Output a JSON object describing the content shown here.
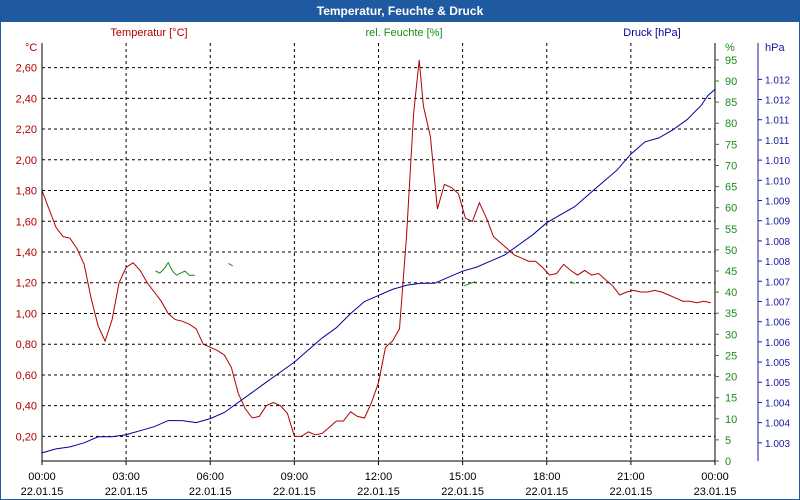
{
  "window": {
    "title": "Temperatur, Feuchte & Druck"
  },
  "colors": {
    "temperature": "#b00000",
    "humidity": "#1a8c1a",
    "pressure": "#000099",
    "pressure_axis": "#1a1aa0",
    "grid": "#000000",
    "titlebar": "#1f5aa0"
  },
  "chart_data": {
    "type": "line",
    "title": "Temperatur, Feuchte & Druck",
    "grid": true,
    "x_axis": {
      "range_hours": [
        0,
        24
      ],
      "ticks": [
        {
          "h": 0,
          "time": "00:00",
          "date": "22.01.15"
        },
        {
          "h": 3,
          "time": "03:00",
          "date": "22.01.15"
        },
        {
          "h": 6,
          "time": "06:00",
          "date": "22.01.15"
        },
        {
          "h": 9,
          "time": "09:00",
          "date": "22.01.15"
        },
        {
          "h": 12,
          "time": "12:00",
          "date": "22.01.15"
        },
        {
          "h": 15,
          "time": "15:00",
          "date": "22.01.15"
        },
        {
          "h": 18,
          "time": "18:00",
          "date": "22.01.15"
        },
        {
          "h": 21,
          "time": "21:00",
          "date": "22.01.15"
        },
        {
          "h": 24,
          "time": "00:00",
          "date": "23.01.15"
        }
      ]
    },
    "axes": {
      "temperature": {
        "label": "Temperatur [°C]",
        "unit": "°C",
        "side": "left",
        "range": [
          0.04,
          2.76
        ],
        "ticks": [
          {
            "v": 0.2,
            "label": "0,20"
          },
          {
            "v": 0.4,
            "label": "0,40"
          },
          {
            "v": 0.6,
            "label": "0,60"
          },
          {
            "v": 0.8,
            "label": "0,80"
          },
          {
            "v": 1.0,
            "label": "1,00"
          },
          {
            "v": 1.2,
            "label": "1,20"
          },
          {
            "v": 1.4,
            "label": "1,40"
          },
          {
            "v": 1.6,
            "label": "1,60"
          },
          {
            "v": 1.8,
            "label": "1,80"
          },
          {
            "v": 2.0,
            "label": "2,00"
          },
          {
            "v": 2.2,
            "label": "2,20"
          },
          {
            "v": 2.4,
            "label": "2,40"
          },
          {
            "v": 2.6,
            "label": "2,60"
          }
        ]
      },
      "humidity": {
        "label": "rel. Feuchte [%]",
        "unit": "%",
        "side": "right",
        "range": [
          0,
          99
        ],
        "ticks": [
          {
            "v": 0,
            "label": "0"
          },
          {
            "v": 5,
            "label": "5"
          },
          {
            "v": 10,
            "label": "10"
          },
          {
            "v": 15,
            "label": "15"
          },
          {
            "v": 20,
            "label": "20"
          },
          {
            "v": 25,
            "label": "25"
          },
          {
            "v": 30,
            "label": "30"
          },
          {
            "v": 35,
            "label": "35"
          },
          {
            "v": 40,
            "label": "40"
          },
          {
            "v": 45,
            "label": "45"
          },
          {
            "v": 50,
            "label": "50"
          },
          {
            "v": 55,
            "label": "55"
          },
          {
            "v": 60,
            "label": "60"
          },
          {
            "v": 65,
            "label": "65"
          },
          {
            "v": 70,
            "label": "70"
          },
          {
            "v": 75,
            "label": "75"
          },
          {
            "v": 80,
            "label": "80"
          },
          {
            "v": 85,
            "label": "85"
          },
          {
            "v": 90,
            "label": "90"
          },
          {
            "v": 95,
            "label": "95"
          }
        ]
      },
      "pressure": {
        "label": "Druck [hPa]",
        "unit": "hPa",
        "side": "right",
        "range": [
          1002.55,
          1012.9
        ],
        "ticks": [
          {
            "v": 1003.0,
            "label": "1.003"
          },
          {
            "v": 1003.5,
            "label": "1.004"
          },
          {
            "v": 1004.0,
            "label": "1.004"
          },
          {
            "v": 1004.5,
            "label": "1.005"
          },
          {
            "v": 1005.0,
            "label": "1.005"
          },
          {
            "v": 1005.5,
            "label": "1.006"
          },
          {
            "v": 1006.0,
            "label": "1.006"
          },
          {
            "v": 1006.5,
            "label": "1.007"
          },
          {
            "v": 1007.0,
            "label": "1.007"
          },
          {
            "v": 1007.5,
            "label": "1.008"
          },
          {
            "v": 1008.0,
            "label": "1.008"
          },
          {
            "v": 1008.5,
            "label": "1.009"
          },
          {
            "v": 1009.0,
            "label": "1.009"
          },
          {
            "v": 1009.5,
            "label": "1.010"
          },
          {
            "v": 1010.0,
            "label": "1.010"
          },
          {
            "v": 1010.5,
            "label": "1.011"
          },
          {
            "v": 1011.0,
            "label": "1.011"
          },
          {
            "v": 1011.5,
            "label": "1.012"
          },
          {
            "v": 1012.0,
            "label": "1.012"
          }
        ]
      }
    },
    "series": [
      {
        "name": "Temperatur [°C]",
        "axis": "temperature",
        "color": "#b00000",
        "points": [
          [
            0.0,
            1.8
          ],
          [
            0.25,
            1.68
          ],
          [
            0.5,
            1.56
          ],
          [
            0.75,
            1.5
          ],
          [
            1.0,
            1.49
          ],
          [
            1.25,
            1.42
          ],
          [
            1.5,
            1.32
          ],
          [
            1.75,
            1.1
          ],
          [
            2.0,
            0.92
          ],
          [
            2.25,
            0.82
          ],
          [
            2.5,
            0.96
          ],
          [
            2.75,
            1.2
          ],
          [
            3.0,
            1.3
          ],
          [
            3.25,
            1.33
          ],
          [
            3.5,
            1.28
          ],
          [
            3.75,
            1.2
          ],
          [
            4.0,
            1.14
          ],
          [
            4.25,
            1.08
          ],
          [
            4.5,
            1.0
          ],
          [
            4.75,
            0.96
          ],
          [
            5.0,
            0.95
          ],
          [
            5.25,
            0.93
          ],
          [
            5.5,
            0.9
          ],
          [
            5.75,
            0.8
          ],
          [
            6.0,
            0.78
          ],
          [
            6.25,
            0.76
          ],
          [
            6.5,
            0.73
          ],
          [
            6.75,
            0.65
          ],
          [
            7.0,
            0.48
          ],
          [
            7.25,
            0.38
          ],
          [
            7.5,
            0.32
          ],
          [
            7.75,
            0.33
          ],
          [
            8.0,
            0.4
          ],
          [
            8.25,
            0.42
          ],
          [
            8.5,
            0.4
          ],
          [
            8.75,
            0.35
          ],
          [
            9.0,
            0.2
          ],
          [
            9.25,
            0.2
          ],
          [
            9.5,
            0.23
          ],
          [
            9.75,
            0.21
          ],
          [
            10.0,
            0.22
          ],
          [
            10.25,
            0.26
          ],
          [
            10.5,
            0.3
          ],
          [
            10.75,
            0.3
          ],
          [
            11.0,
            0.36
          ],
          [
            11.25,
            0.33
          ],
          [
            11.5,
            0.32
          ],
          [
            11.75,
            0.42
          ],
          [
            12.0,
            0.55
          ],
          [
            12.25,
            0.78
          ],
          [
            12.5,
            0.82
          ],
          [
            12.75,
            0.9
          ],
          [
            13.0,
            1.5
          ],
          [
            13.25,
            2.3
          ],
          [
            13.45,
            2.65
          ],
          [
            13.6,
            2.35
          ],
          [
            13.85,
            2.15
          ],
          [
            14.1,
            1.68
          ],
          [
            14.35,
            1.84
          ],
          [
            14.6,
            1.82
          ],
          [
            14.85,
            1.78
          ],
          [
            15.1,
            1.62
          ],
          [
            15.35,
            1.6
          ],
          [
            15.6,
            1.72
          ],
          [
            15.85,
            1.62
          ],
          [
            16.1,
            1.5
          ],
          [
            16.35,
            1.46
          ],
          [
            16.6,
            1.42
          ],
          [
            16.85,
            1.38
          ],
          [
            17.1,
            1.36
          ],
          [
            17.35,
            1.34
          ],
          [
            17.6,
            1.34
          ],
          [
            17.85,
            1.3
          ],
          [
            18.1,
            1.25
          ],
          [
            18.35,
            1.26
          ],
          [
            18.6,
            1.32
          ],
          [
            18.85,
            1.28
          ],
          [
            19.1,
            1.25
          ],
          [
            19.35,
            1.28
          ],
          [
            19.6,
            1.25
          ],
          [
            19.85,
            1.26
          ],
          [
            20.1,
            1.22
          ],
          [
            20.35,
            1.18
          ],
          [
            20.6,
            1.12
          ],
          [
            20.85,
            1.14
          ],
          [
            21.1,
            1.15
          ],
          [
            21.35,
            1.14
          ],
          [
            21.6,
            1.14
          ],
          [
            21.85,
            1.15
          ],
          [
            22.1,
            1.14
          ],
          [
            22.35,
            1.12
          ],
          [
            22.6,
            1.1
          ],
          [
            22.85,
            1.08
          ],
          [
            23.1,
            1.08
          ],
          [
            23.35,
            1.07
          ],
          [
            23.6,
            1.08
          ],
          [
            23.85,
            1.07
          ]
        ]
      },
      {
        "name": "rel. Feuchte [%]",
        "axis": "humidity",
        "color": "#1a8c1a",
        "segments": [
          [
            [
              4.05,
              45
            ],
            [
              4.2,
              44.5
            ],
            [
              4.35,
              45.5
            ],
            [
              4.5,
              47
            ],
            [
              4.65,
              45
            ],
            [
              4.8,
              44
            ],
            [
              4.95,
              44.5
            ],
            [
              5.1,
              45
            ],
            [
              5.25,
              44
            ],
            [
              5.45,
              44
            ]
          ],
          [
            [
              6.65,
              46.8
            ],
            [
              6.8,
              46.2
            ]
          ],
          [
            [
              15.05,
              41.5
            ],
            [
              15.25,
              42
            ],
            [
              15.45,
              42.5
            ]
          ],
          [
            [
              18.85,
              42.5
            ],
            [
              19.0,
              42
            ]
          ]
        ]
      },
      {
        "name": "Druck [hPa]",
        "axis": "pressure",
        "color": "#000099",
        "points": [
          [
            0.0,
            1002.75
          ],
          [
            0.5,
            1002.85
          ],
          [
            1.0,
            1002.9
          ],
          [
            1.5,
            1003.0
          ],
          [
            2.0,
            1003.15
          ],
          [
            2.5,
            1003.15
          ],
          [
            3.0,
            1003.2
          ],
          [
            3.5,
            1003.3
          ],
          [
            4.0,
            1003.4
          ],
          [
            4.5,
            1003.55
          ],
          [
            5.0,
            1003.55
          ],
          [
            5.5,
            1003.5
          ],
          [
            6.0,
            1003.6
          ],
          [
            6.5,
            1003.75
          ],
          [
            7.0,
            1004.0
          ],
          [
            7.5,
            1004.25
          ],
          [
            8.0,
            1004.5
          ],
          [
            8.5,
            1004.75
          ],
          [
            9.0,
            1005.0
          ],
          [
            9.5,
            1005.3
          ],
          [
            10.0,
            1005.6
          ],
          [
            10.5,
            1005.85
          ],
          [
            11.0,
            1006.2
          ],
          [
            11.5,
            1006.5
          ],
          [
            12.0,
            1006.65
          ],
          [
            12.5,
            1006.8
          ],
          [
            13.0,
            1006.9
          ],
          [
            13.5,
            1006.95
          ],
          [
            14.0,
            1006.95
          ],
          [
            14.5,
            1007.1
          ],
          [
            15.0,
            1007.25
          ],
          [
            15.5,
            1007.35
          ],
          [
            16.0,
            1007.5
          ],
          [
            16.5,
            1007.65
          ],
          [
            17.0,
            1007.9
          ],
          [
            17.5,
            1008.15
          ],
          [
            18.0,
            1008.45
          ],
          [
            18.5,
            1008.65
          ],
          [
            19.0,
            1008.85
          ],
          [
            19.5,
            1009.15
          ],
          [
            20.0,
            1009.45
          ],
          [
            20.5,
            1009.75
          ],
          [
            21.0,
            1010.15
          ],
          [
            21.5,
            1010.45
          ],
          [
            22.0,
            1010.55
          ],
          [
            22.5,
            1010.75
          ],
          [
            23.0,
            1011.0
          ],
          [
            23.5,
            1011.35
          ],
          [
            23.75,
            1011.6
          ],
          [
            24.0,
            1011.75
          ]
        ]
      }
    ]
  }
}
